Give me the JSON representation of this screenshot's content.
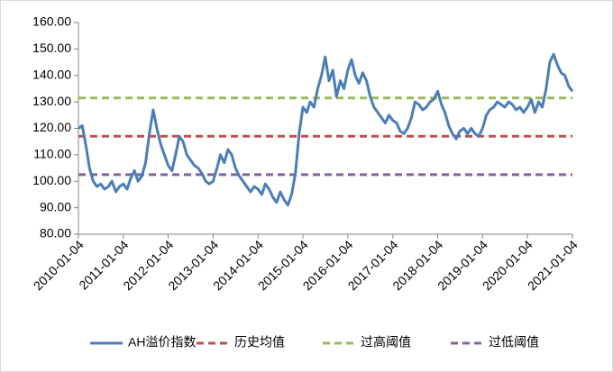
{
  "chart_data": {
    "type": "line",
    "xlim": [
      "2010-01-04",
      "2021-01-04"
    ],
    "xticks": [
      "2010-01-04",
      "2011-01-04",
      "2012-01-04",
      "2013-01-04",
      "2014-01-04",
      "2015-01-04",
      "2016-01-04",
      "2017-01-04",
      "2018-01-04",
      "2019-01-04",
      "2020-01-04",
      "2021-01-04"
    ],
    "ylim": [
      80,
      160
    ],
    "yticks": [
      {
        "value": 80,
        "label": "80.00"
      },
      {
        "value": 90,
        "label": "90.00"
      },
      {
        "value": 100,
        "label": "100.00"
      },
      {
        "value": 110,
        "label": "110.00"
      },
      {
        "value": 120,
        "label": "120.00"
      },
      {
        "value": 130,
        "label": "130.00"
      },
      {
        "value": 140,
        "label": "140.00"
      },
      {
        "value": 150,
        "label": "150.00"
      },
      {
        "value": 160,
        "label": "160.00"
      }
    ],
    "grid": false,
    "legend": "bottom",
    "series": [
      {
        "name": "AH溢价指数",
        "color": "#4a7ebb",
        "dash": false,
        "x": [
          "2010-01-04",
          "2010-02-04",
          "2010-03-04",
          "2010-04-04",
          "2010-05-04",
          "2010-06-04",
          "2010-07-04",
          "2010-08-04",
          "2010-09-04",
          "2010-10-04",
          "2010-11-04",
          "2010-12-04",
          "2011-01-04",
          "2011-02-04",
          "2011-03-04",
          "2011-04-04",
          "2011-05-04",
          "2011-06-04",
          "2011-07-04",
          "2011-08-04",
          "2011-09-04",
          "2011-10-04",
          "2011-11-04",
          "2011-12-04",
          "2012-01-04",
          "2012-02-04",
          "2012-03-04",
          "2012-04-04",
          "2012-05-04",
          "2012-06-04",
          "2012-07-04",
          "2012-08-04",
          "2012-09-04",
          "2012-10-04",
          "2012-11-04",
          "2012-12-04",
          "2013-01-04",
          "2013-02-04",
          "2013-03-04",
          "2013-04-04",
          "2013-05-04",
          "2013-06-04",
          "2013-07-04",
          "2013-08-04",
          "2013-09-04",
          "2013-10-04",
          "2013-11-04",
          "2013-12-04",
          "2014-01-04",
          "2014-02-04",
          "2014-03-04",
          "2014-04-04",
          "2014-05-04",
          "2014-06-04",
          "2014-07-04",
          "2014-08-04",
          "2014-09-04",
          "2014-10-04",
          "2014-11-04",
          "2014-12-04",
          "2015-01-04",
          "2015-02-04",
          "2015-03-04",
          "2015-04-04",
          "2015-05-04",
          "2015-06-04",
          "2015-07-04",
          "2015-08-04",
          "2015-09-04",
          "2015-10-04",
          "2015-11-04",
          "2015-12-04",
          "2016-01-04",
          "2016-02-04",
          "2016-03-04",
          "2016-04-04",
          "2016-05-04",
          "2016-06-04",
          "2016-07-04",
          "2016-08-04",
          "2016-09-04",
          "2016-10-04",
          "2016-11-04",
          "2016-12-04",
          "2017-01-04",
          "2017-02-04",
          "2017-03-04",
          "2017-04-04",
          "2017-05-04",
          "2017-06-04",
          "2017-07-04",
          "2017-08-04",
          "2017-09-04",
          "2017-10-04",
          "2017-11-04",
          "2017-12-04",
          "2018-01-04",
          "2018-02-04",
          "2018-03-04",
          "2018-04-04",
          "2018-05-04",
          "2018-06-04",
          "2018-07-04",
          "2018-08-04",
          "2018-09-04",
          "2018-10-04",
          "2018-11-04",
          "2018-12-04",
          "2019-01-04",
          "2019-02-04",
          "2019-03-04",
          "2019-04-04",
          "2019-05-04",
          "2019-06-04",
          "2019-07-04",
          "2019-08-04",
          "2019-09-04",
          "2019-10-04",
          "2019-11-04",
          "2019-12-04",
          "2020-01-04",
          "2020-02-04",
          "2020-03-04",
          "2020-04-04",
          "2020-05-04",
          "2020-06-04",
          "2020-07-04",
          "2020-08-04",
          "2020-09-04",
          "2020-10-04",
          "2020-11-04",
          "2020-12-04",
          "2021-01-04"
        ],
        "values": [
          120,
          121,
          114,
          105,
          100,
          98,
          99,
          97,
          98,
          100,
          96,
          98,
          99,
          97,
          101,
          104,
          100,
          102,
          107,
          118,
          127,
          120,
          114,
          110,
          106,
          104,
          110,
          117,
          115,
          110,
          108,
          106,
          105,
          103,
          100,
          99,
          100,
          105,
          110,
          107,
          112,
          110,
          105,
          102,
          100,
          98,
          96,
          98,
          97,
          95,
          99,
          97,
          94,
          92,
          96,
          93,
          91,
          95,
          103,
          118,
          128,
          126,
          130,
          128,
          135,
          140,
          147,
          138,
          142,
          132,
          138,
          135,
          142,
          146,
          140,
          137,
          141,
          138,
          132,
          128,
          126,
          124,
          122,
          125,
          123,
          122,
          119,
          118,
          120,
          124,
          130,
          129,
          127,
          128,
          130,
          131,
          134,
          129,
          126,
          121,
          118,
          116,
          119,
          120,
          118,
          120,
          118,
          117,
          120,
          125,
          127,
          128,
          130,
          129,
          128,
          130,
          129,
          127,
          128,
          126,
          128,
          131,
          126,
          130,
          128,
          135,
          145,
          148,
          144,
          141,
          140,
          136,
          134
        ]
      },
      {
        "name": "历史均值",
        "color": "#c0504d",
        "dash": true,
        "x": [
          "2010-01-04",
          "2021-01-04"
        ],
        "values": [
          117,
          117
        ]
      },
      {
        "name": "过高阈值",
        "color": "#9bbb59",
        "dash": true,
        "x": [
          "2010-01-04",
          "2021-01-04"
        ],
        "values": [
          131.5,
          131.5
        ]
      },
      {
        "name": "过低阈值",
        "color": "#8064a2",
        "dash": true,
        "x": [
          "2010-01-04",
          "2021-01-04"
        ],
        "values": [
          102.5,
          102.5
        ]
      }
    ]
  }
}
